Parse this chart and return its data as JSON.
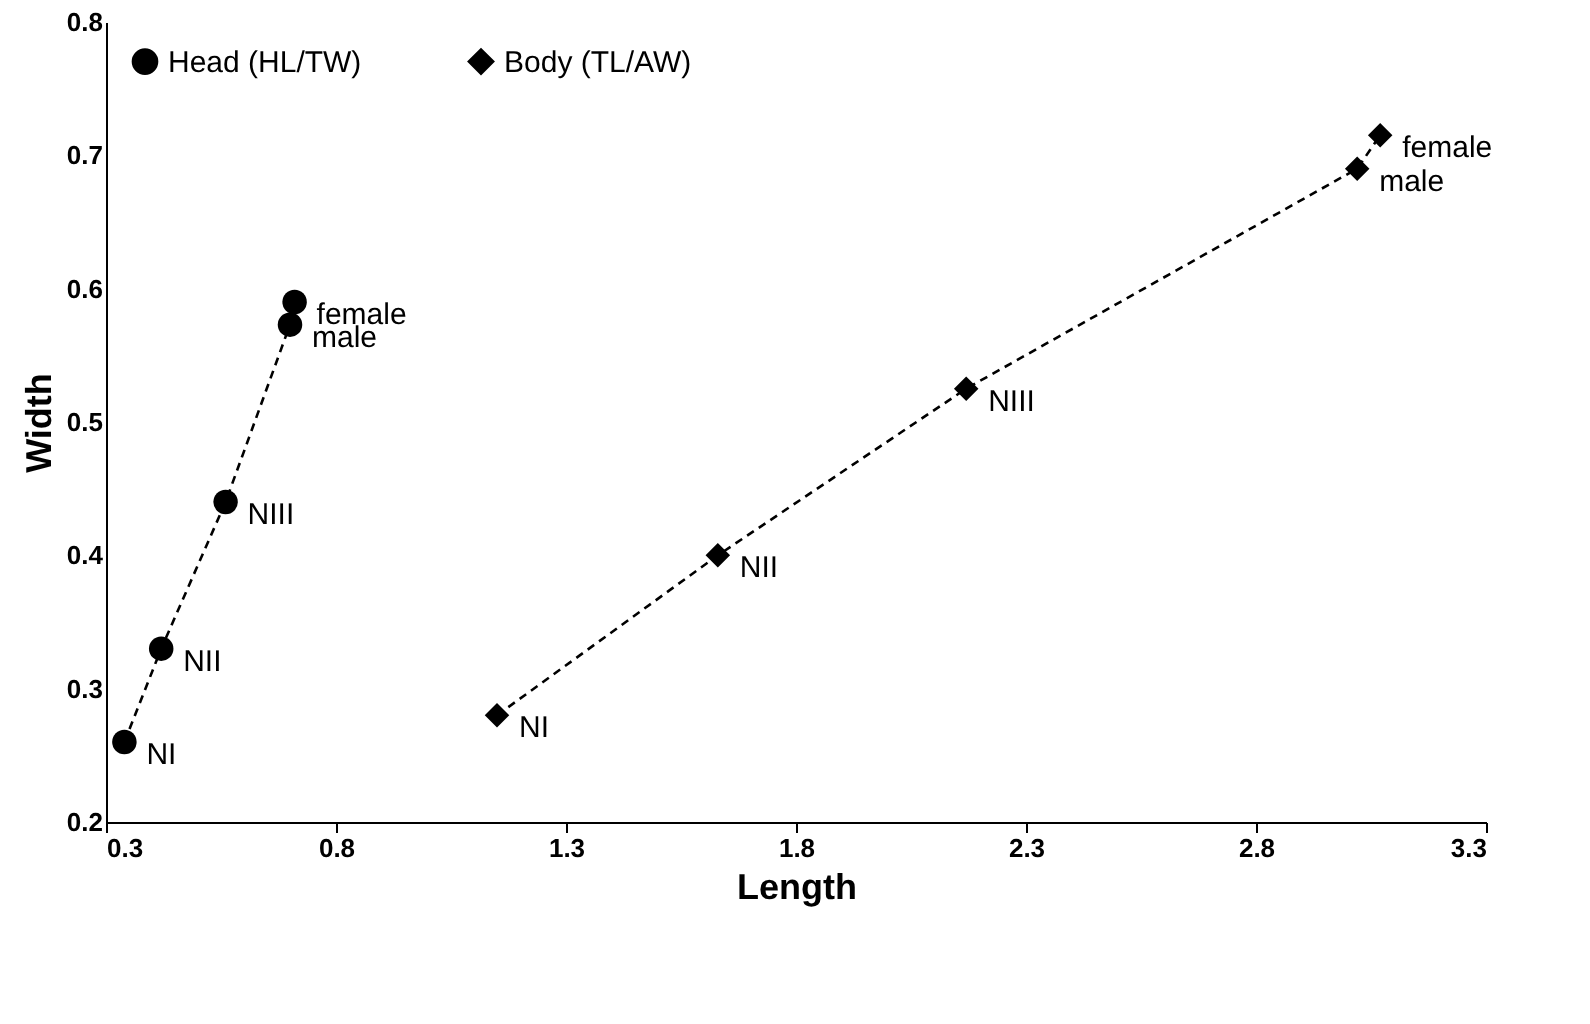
{
  "chart_data": {
    "type": "scatter",
    "xlabel": "Length",
    "ylabel": "Width",
    "series": [
      {
        "name": "Head (HL/TW)",
        "color": "#000000",
        "marker": "circle",
        "line_style": "dashed",
        "x": [
          0.34,
          0.42,
          0.56,
          0.7,
          0.71
        ],
        "values": [
          0.26,
          0.33,
          0.44,
          0.573,
          0.59
        ]
      },
      {
        "name": "Body (TL/AW)",
        "color": "#000000",
        "marker": "diamond",
        "line_style": "dashed",
        "x": [
          1.15,
          1.63,
          2.17,
          3.02,
          3.07
        ],
        "values": [
          0.28,
          0.4,
          0.525,
          0.69,
          0.715
        ]
      }
    ],
    "annotations": [
      {
        "text": "NI",
        "x": 0.34,
        "y": 0.26
      },
      {
        "text": "NII",
        "x": 0.42,
        "y": 0.33
      },
      {
        "text": "NIII",
        "x": 0.56,
        "y": 0.44
      },
      {
        "text": "male",
        "x": 0.7,
        "y": 0.573
      },
      {
        "text": "female",
        "x": 0.71,
        "y": 0.59
      },
      {
        "text": "NI",
        "x": 1.15,
        "y": 0.28
      },
      {
        "text": "NII",
        "x": 1.63,
        "y": 0.4
      },
      {
        "text": "NIII",
        "x": 2.17,
        "y": 0.525
      },
      {
        "text": "male",
        "x": 3.02,
        "y": 0.69
      },
      {
        "text": "female",
        "x": 3.07,
        "y": 0.715
      }
    ],
    "xlim": [
      0.3,
      3.3
    ],
    "xticks": [
      0.3,
      0.8,
      1.3,
      1.8,
      2.3,
      2.8,
      3.3
    ],
    "ylim": [
      0.2,
      0.8
    ],
    "yticks": [
      0.2,
      0.3,
      0.4,
      0.5,
      0.6,
      0.7,
      0.8
    ],
    "grid": false,
    "legend": "top left"
  }
}
